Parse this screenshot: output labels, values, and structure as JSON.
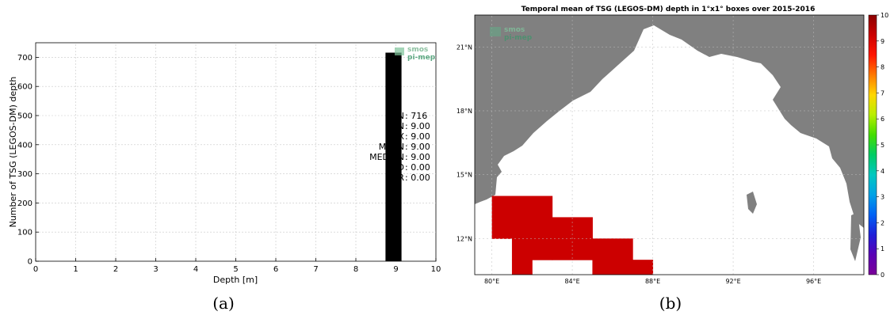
{
  "chart_data": [
    {
      "type": "bar",
      "caption": "(a)",
      "xlabel": "Depth [m]",
      "ylabel": "Number of TSG (LEGOS-DM) depth",
      "xlim": [
        0,
        10
      ],
      "ylim": [
        0,
        750
      ],
      "x_ticks": [
        "0",
        "1",
        "2",
        "3",
        "4",
        "5",
        "6",
        "7",
        "8",
        "9",
        "10"
      ],
      "y_ticks": [
        "0",
        "100",
        "200",
        "300",
        "400",
        "500",
        "600",
        "700"
      ],
      "grid": true,
      "bars": [
        {
          "x": 9.0,
          "value": 716,
          "color": "#000000"
        }
      ],
      "stats": [
        {
          "label": "N",
          "value": "716"
        },
        {
          "label": "MIN",
          "value": "9.00"
        },
        {
          "label": "MAX",
          "value": "9.00"
        },
        {
          "label": "MEAN",
          "value": "9.00"
        },
        {
          "label": "MEDIAN",
          "value": "9.00"
        },
        {
          "label": "STD",
          "value": "0.00"
        },
        {
          "label": "IQR",
          "value": "0.00"
        }
      ],
      "logo": {
        "line1": "smos",
        "line2": "pi-mep"
      }
    },
    {
      "type": "heatmap",
      "caption": "(b)",
      "title": "Temporal mean of TSG (LEGOS-DM) depth in 1°x1° boxes over 2015-2016",
      "lon_ticks": [
        "80°E",
        "84°E",
        "88°E",
        "92°E",
        "96°E"
      ],
      "lat_ticks": [
        "21°N",
        "18°N",
        "15°N",
        "12°N"
      ],
      "colorbar_ticks": [
        "0",
        "1",
        "2",
        "3",
        "4",
        "5",
        "6",
        "7",
        "8",
        "9",
        "10"
      ],
      "colorbar_range": [
        0,
        10
      ],
      "colormap": [
        "#7a0098",
        "#5a00b5",
        "#1f1fd8",
        "#0062f5",
        "#00a2e6",
        "#00c8c0",
        "#00cc64",
        "#44dd00",
        "#b8ee00",
        "#ffd700",
        "#ff7a00",
        "#ff1500",
        "#cc0000",
        "#8b0000"
      ],
      "cell_value": 9.0,
      "cell_color": "#cc0000",
      "land_color": "#808080",
      "cells": [
        {
          "lon": 80.5,
          "lat": 12.5
        },
        {
          "lon": 81.5,
          "lat": 12.5
        },
        {
          "lon": 82.5,
          "lat": 12.5
        },
        {
          "lon": 83.5,
          "lat": 12.5
        },
        {
          "lon": 84.5,
          "lat": 12.5
        },
        {
          "lon": 80.5,
          "lat": 13.5
        },
        {
          "lon": 81.5,
          "lat": 13.5
        },
        {
          "lon": 82.5,
          "lat": 13.5
        },
        {
          "lon": 81.5,
          "lat": 11.5
        },
        {
          "lon": 82.5,
          "lat": 11.5
        },
        {
          "lon": 81.5,
          "lat": 10.5
        },
        {
          "lon": 83.5,
          "lat": 11.5
        },
        {
          "lon": 84.5,
          "lat": 11.5
        },
        {
          "lon": 85.5,
          "lat": 11.5
        },
        {
          "lon": 86.5,
          "lat": 11.5
        },
        {
          "lon": 85.5,
          "lat": 10.5
        },
        {
          "lon": 86.5,
          "lat": 10.5
        },
        {
          "lon": 87.5,
          "lat": 10.5
        }
      ],
      "logo": {
        "line1": "smos",
        "line2": "pi-mep"
      }
    }
  ]
}
